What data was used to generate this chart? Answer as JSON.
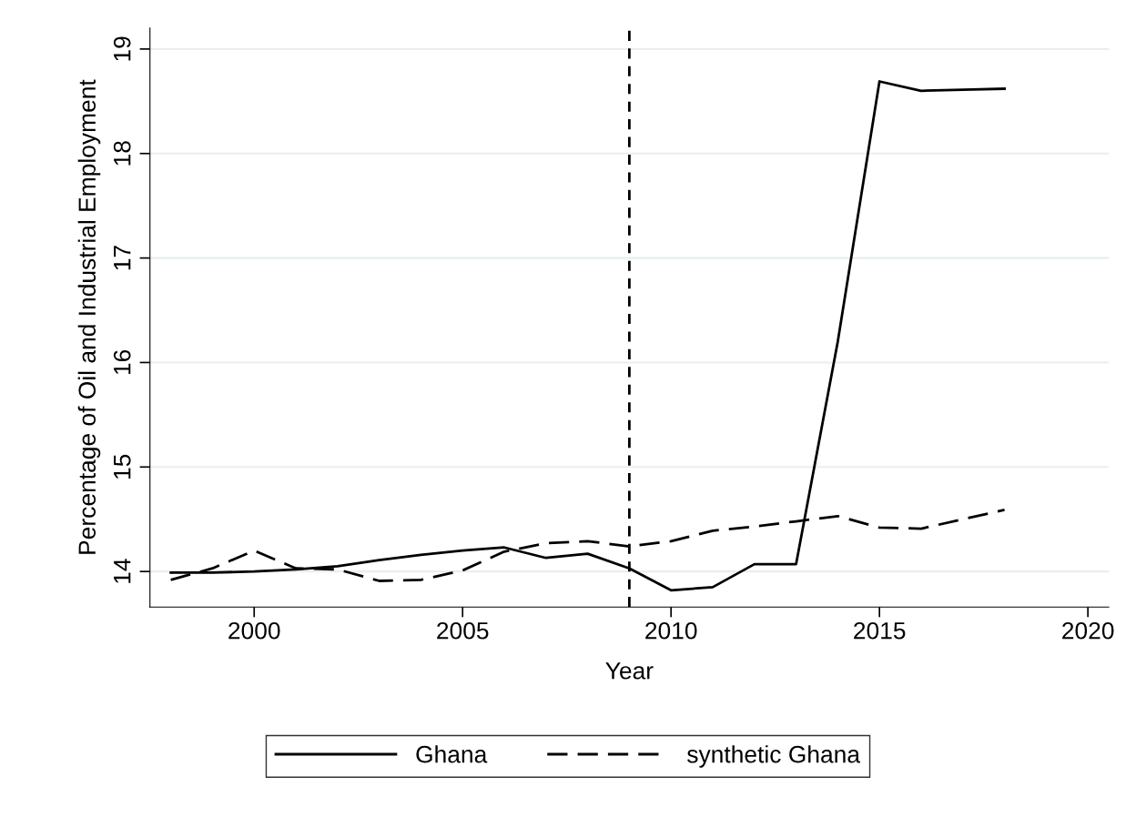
{
  "chart_data": {
    "type": "line",
    "xlabel": "Year",
    "ylabel": "Percentage of Oil and Industrial Employment",
    "x": [
      1998,
      1999,
      2000,
      2001,
      2002,
      2003,
      2004,
      2005,
      2006,
      2007,
      2008,
      2009,
      2010,
      2011,
      2012,
      2013,
      2014,
      2015,
      2016,
      2017,
      2018
    ],
    "series": [
      {
        "name": "Ghana",
        "color": "#000000",
        "line_style": "solid",
        "values": [
          13.99,
          13.99,
          14.0,
          14.02,
          14.05,
          14.11,
          14.16,
          14.2,
          14.23,
          14.13,
          14.17,
          14.03,
          13.82,
          13.85,
          14.07,
          14.07,
          16.2,
          18.69,
          18.6,
          18.61,
          18.62
        ]
      },
      {
        "name": "synthetic Ghana",
        "color": "#000000",
        "line_style": "dashed",
        "values": [
          13.92,
          14.03,
          14.2,
          14.03,
          14.02,
          13.91,
          13.92,
          14.01,
          14.19,
          14.27,
          14.29,
          14.24,
          14.29,
          14.39,
          14.43,
          14.48,
          14.53,
          14.42,
          14.41,
          14.5,
          14.59
        ]
      }
    ],
    "xlim": [
      1997.5,
      2020.5
    ],
    "xticks": [
      2000,
      2005,
      2010,
      2015,
      2020
    ],
    "ylim": [
      13.66,
      19.2
    ],
    "yticks": [
      14,
      15,
      16,
      17,
      18,
      19
    ],
    "ref_lines": [
      {
        "axis": "x",
        "value": 2009,
        "color": "#000000",
        "line_style": "dotted"
      }
    ],
    "grid": "y",
    "legend": "bottom",
    "marker": "none"
  }
}
